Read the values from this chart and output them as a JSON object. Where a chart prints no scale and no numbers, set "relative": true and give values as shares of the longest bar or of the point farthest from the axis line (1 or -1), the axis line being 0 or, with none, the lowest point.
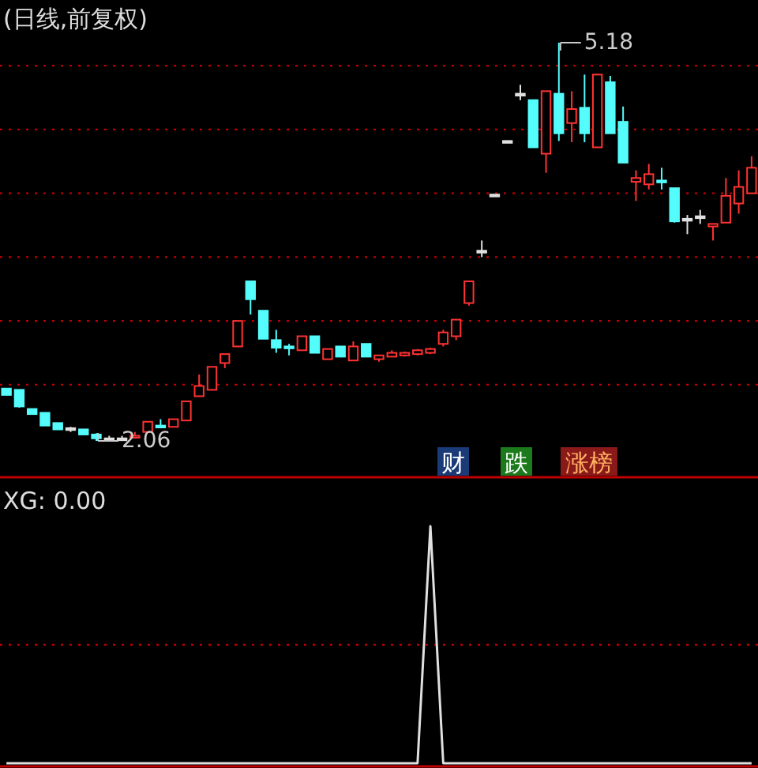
{
  "chart_data": [
    {
      "type": "candlestick",
      "title": "(日线,前复权)",
      "categories": [
        null,
        null,
        null,
        null,
        null,
        null,
        null,
        null,
        null,
        null,
        null,
        null,
        null,
        null,
        null,
        null,
        null,
        null,
        null,
        null,
        null,
        null,
        null,
        null,
        null,
        null,
        null,
        null,
        null,
        null,
        null,
        null,
        null,
        null,
        null,
        null,
        null,
        null,
        null,
        null,
        null,
        null,
        null,
        null,
        null,
        null,
        null,
        null,
        null,
        null,
        null,
        null,
        null,
        null,
        null,
        null,
        null,
        null,
        null
      ],
      "ohlc": [
        [
          2.47,
          2.47,
          2.42,
          2.42
        ],
        [
          2.46,
          2.46,
          2.32,
          2.33
        ],
        [
          2.31,
          2.31,
          2.27,
          2.27
        ],
        [
          2.28,
          2.28,
          2.18,
          2.18
        ],
        [
          2.2,
          2.2,
          2.15,
          2.15
        ],
        [
          2.16,
          2.17,
          2.13,
          2.16
        ],
        [
          2.15,
          2.15,
          2.11,
          2.11
        ],
        [
          2.11,
          2.12,
          2.06,
          2.08
        ],
        [
          2.08,
          2.1,
          2.07,
          2.08
        ],
        [
          2.08,
          2.1,
          2.07,
          2.08
        ],
        [
          2.09,
          2.13,
          2.08,
          2.1
        ],
        [
          2.13,
          2.21,
          2.13,
          2.21
        ],
        [
          2.18,
          2.23,
          2.17,
          2.17
        ],
        [
          2.17,
          2.23,
          2.17,
          2.23
        ],
        [
          2.22,
          2.37,
          2.22,
          2.37
        ],
        [
          2.41,
          2.58,
          2.41,
          2.49
        ],
        [
          2.46,
          2.64,
          2.46,
          2.64
        ],
        [
          2.67,
          2.74,
          2.63,
          2.74
        ],
        [
          2.8,
          3.0,
          2.8,
          3.0
        ],
        [
          3.31,
          3.31,
          3.05,
          3.17
        ],
        [
          3.08,
          3.08,
          2.86,
          2.86
        ],
        [
          2.85,
          2.93,
          2.75,
          2.79
        ],
        [
          2.8,
          2.82,
          2.73,
          2.79
        ],
        [
          2.77,
          2.88,
          2.77,
          2.88
        ],
        [
          2.88,
          2.88,
          2.75,
          2.75
        ],
        [
          2.7,
          2.78,
          2.7,
          2.78
        ],
        [
          2.8,
          2.8,
          2.72,
          2.72
        ],
        [
          2.69,
          2.84,
          2.69,
          2.8
        ],
        [
          2.82,
          2.82,
          2.72,
          2.72
        ],
        [
          2.7,
          2.73,
          2.68,
          2.73
        ],
        [
          2.72,
          2.77,
          2.72,
          2.75
        ],
        [
          2.73,
          2.76,
          2.72,
          2.75
        ],
        [
          2.74,
          2.78,
          2.73,
          2.77
        ],
        [
          2.75,
          2.79,
          2.74,
          2.78
        ],
        [
          2.82,
          2.93,
          2.8,
          2.91
        ],
        [
          2.88,
          3.01,
          2.85,
          3.01
        ],
        [
          3.14,
          3.31,
          3.12,
          3.31
        ],
        [
          3.55,
          3.63,
          3.5,
          3.55
        ],
        [
          3.99,
          3.99,
          3.99,
          3.99
        ],
        [
          4.41,
          4.41,
          4.41,
          4.41
        ],
        [
          4.78,
          4.85,
          4.73,
          4.78
        ],
        [
          4.73,
          4.73,
          4.36,
          4.36
        ],
        [
          4.31,
          4.8,
          4.16,
          4.8
        ],
        [
          4.78,
          5.18,
          4.41,
          4.47
        ],
        [
          4.55,
          4.8,
          4.4,
          4.66
        ],
        [
          4.67,
          4.93,
          4.4,
          4.47
        ],
        [
          4.36,
          4.93,
          4.36,
          4.93
        ],
        [
          4.87,
          4.92,
          4.47,
          4.47
        ],
        [
          4.56,
          4.68,
          4.24,
          4.24
        ],
        [
          4.09,
          4.18,
          3.94,
          4.12
        ],
        [
          4.07,
          4.23,
          4.03,
          4.15
        ],
        [
          4.1,
          4.2,
          4.03,
          4.09
        ],
        [
          4.04,
          4.04,
          3.77,
          3.78
        ],
        [
          3.8,
          3.83,
          3.68,
          3.8
        ],
        [
          3.82,
          3.87,
          3.76,
          3.82
        ],
        [
          3.74,
          3.76,
          3.63,
          3.76
        ],
        [
          3.77,
          4.12,
          3.77,
          3.98
        ],
        [
          3.92,
          4.18,
          3.84,
          4.05
        ],
        [
          4.0,
          4.29,
          4.0,
          4.2
        ]
      ],
      "colors": [
        "#54fcfc",
        "#54fcfc",
        "#54fcfc",
        "#54fcfc",
        "#54fcfc",
        "#e0e0e0",
        "#54fcfc",
        "#54fcfc",
        "#e0e0e0",
        "#e0e0e0",
        "#ff3232",
        "#ff3232",
        "#54fcfc",
        "#ff3232",
        "#ff3232",
        "#ff3232",
        "#ff3232",
        "#ff3232",
        "#ff3232",
        "#54fcfc",
        "#54fcfc",
        "#54fcfc",
        "#54fcfc",
        "#ff3232",
        "#54fcfc",
        "#ff3232",
        "#54fcfc",
        "#ff3232",
        "#54fcfc",
        "#ff3232",
        "#ff3232",
        "#ff3232",
        "#ff3232",
        "#ff3232",
        "#ff3232",
        "#ff3232",
        "#ff3232",
        "#e0e0e0",
        "#e0e0e0",
        "#e0e0e0",
        "#e0e0e0",
        "#54fcfc",
        "#ff3232",
        "#54fcfc",
        "#ff3232",
        "#54fcfc",
        "#ff3232",
        "#54fcfc",
        "#54fcfc",
        "#ff3232",
        "#ff3232",
        "#54fcfc",
        "#54fcfc",
        "#e0e0e0",
        "#e0e0e0",
        "#ff3232",
        "#ff3232",
        "#ff3232",
        "#ff3232"
      ],
      "yticks": [
        {
          "value": 2.5,
          "label": null
        },
        {
          "value": 3.0,
          "label": null
        },
        {
          "value": 3.5,
          "label": null
        },
        {
          "value": 4.0,
          "label": null
        },
        {
          "value": 4.5,
          "label": null
        },
        {
          "value": 5.0,
          "label": null
        }
      ],
      "grid": "y",
      "annotations": [
        "5.18",
        "2.06",
        "财",
        "跌",
        "涨榜"
      ]
    },
    {
      "type": "line",
      "title": "XG: 0.00",
      "relative": true,
      "categories": [
        null,
        null,
        null,
        null,
        null,
        null,
        null,
        null,
        null,
        null,
        null,
        null,
        null,
        null,
        null,
        null,
        null,
        null,
        null,
        null,
        null,
        null,
        null,
        null,
        null,
        null,
        null,
        null,
        null,
        null,
        null,
        null,
        null,
        null,
        null,
        null,
        null,
        null,
        null,
        null,
        null,
        null,
        null,
        null,
        null,
        null,
        null,
        null,
        null,
        null,
        null,
        null,
        null,
        null,
        null,
        null,
        null,
        null,
        null
      ],
      "series": [
        {
          "color": "#e0e0e0",
          "values": [
            0,
            0,
            0,
            0,
            0,
            0,
            0,
            0,
            0,
            0,
            0,
            0,
            0,
            0,
            0,
            0,
            0,
            0,
            0,
            0,
            0,
            0,
            0,
            0,
            0,
            0,
            0,
            0,
            0,
            0,
            0,
            0,
            0,
            1,
            0,
            0,
            0,
            0,
            0,
            0,
            0,
            0,
            0,
            0,
            0,
            0,
            0,
            0,
            0,
            0,
            0,
            0,
            0,
            0,
            0,
            0,
            0,
            0,
            0
          ]
        }
      ],
      "ref_lines": [
        {
          "axis": "y",
          "value": 0.5,
          "color": "#c00000",
          "line_style": "dotted"
        }
      ]
    }
  ]
}
